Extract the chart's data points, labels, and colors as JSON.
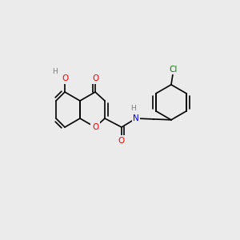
{
  "background_color": "#ebebeb",
  "bond_color": "#000000",
  "bond_width": 1.2,
  "atom_colors": {
    "O": "#ff0000",
    "N": "#0000ff",
    "Cl": "#008000",
    "H": "#808080",
    "C": "#000000"
  },
  "font_size": 7.5
}
